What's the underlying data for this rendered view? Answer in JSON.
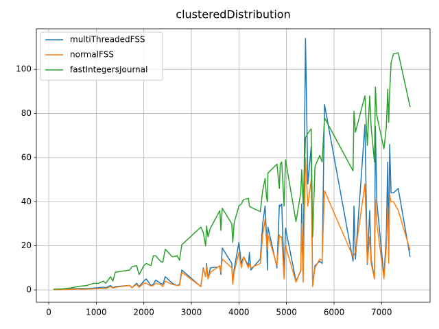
{
  "chart_data": {
    "type": "line",
    "title": "clusteredDistribution",
    "x": [
      100,
      300,
      500,
      600,
      800,
      950,
      1050,
      1150,
      1200,
      1300,
      1350,
      1400,
      1700,
      1750,
      1850,
      1900,
      2000,
      2050,
      2150,
      2200,
      2250,
      2350,
      2400,
      2450,
      2600,
      2700,
      2750,
      2800,
      3200,
      3250,
      3300,
      3320,
      3350,
      3400,
      3600,
      3620,
      3650,
      3850,
      3870,
      3900,
      4000,
      4050,
      4100,
      4200,
      4220,
      4250,
      4450,
      4500,
      4550,
      4580,
      4600,
      4610,
      4800,
      4850,
      4870,
      4900,
      4950,
      4980,
      5200,
      5300,
      5320,
      5350,
      5400,
      5450,
      5520,
      5550,
      5600,
      5700,
      5750,
      5800,
      6400,
      6420,
      6450,
      6650,
      6700,
      6750,
      6780,
      6850,
      6870,
      6900,
      7050,
      7100,
      7130,
      7150,
      7170,
      7200,
      7250,
      7350,
      7600
    ],
    "series": [
      {
        "name": "multiThreadedFSS",
        "color": "#1f77b4",
        "values": [
          0.2,
          0.3,
          0.5,
          0.6,
          0.6,
          0.8,
          1.0,
          1.2,
          1.0,
          2.0,
          1.0,
          1.5,
          2.0,
          1.0,
          3.0,
          1.5,
          4.0,
          5.0,
          2.0,
          2.5,
          4.5,
          3.0,
          2.5,
          6.0,
          3.0,
          2.0,
          2.5,
          9.0,
          1.5,
          10.0,
          6.0,
          12.0,
          5.0,
          10.0,
          10.5,
          7.0,
          19.0,
          12.0,
          3.0,
          9.5,
          21.5,
          12.0,
          15.0,
          11.0,
          17.0,
          9.0,
          14.0,
          30.0,
          38.0,
          25.0,
          9.0,
          28.5,
          10.0,
          38.5,
          38.0,
          39.0,
          7.0,
          28.0,
          4.0,
          8.5,
          39.0,
          4.0,
          114.0,
          48.0,
          65.0,
          2.0,
          11.0,
          13.0,
          12.0,
          84.0,
          13.0,
          38.0,
          14.0,
          75.0,
          11.5,
          36.0,
          14.0,
          5.0,
          74.0,
          40.0,
          6.0,
          25.0,
          58.0,
          13.0,
          66.0,
          44.0,
          44.0,
          46.0,
          15.0
        ]
      },
      {
        "name": "normalFSS",
        "color": "#ff7f0e",
        "values": [
          0.1,
          0.2,
          0.3,
          0.4,
          0.4,
          0.5,
          0.6,
          0.8,
          0.6,
          1.5,
          0.8,
          1.2,
          2.0,
          1.0,
          2.5,
          1.2,
          3.0,
          3.0,
          1.8,
          2.0,
          3.0,
          2.5,
          1.5,
          4.0,
          2.5,
          2.0,
          2.0,
          8.0,
          1.5,
          9.5,
          6.0,
          11.0,
          5.0,
          8.0,
          11.0,
          8.0,
          14.0,
          10.0,
          2.5,
          8.0,
          17.0,
          10.0,
          15.0,
          10.0,
          12.0,
          10.0,
          12.0,
          25.0,
          32.0,
          22.0,
          18.0,
          25.0,
          11.0,
          25.0,
          24.0,
          24.0,
          5.0,
          20.0,
          3.5,
          9.0,
          30.0,
          3.5,
          60.0,
          38.0,
          50.0,
          1.5,
          10.0,
          14.0,
          13.5,
          45.0,
          15.0,
          16.0,
          17.0,
          48.0,
          12.0,
          24.0,
          12.0,
          5.0,
          41.0,
          30.0,
          5.0,
          20.0,
          38.0,
          12.0,
          43.0,
          40.0,
          40.0,
          36.0,
          18.0
        ]
      },
      {
        "name": "fastIntegersJournal",
        "color": "#2ca02c",
        "values": [
          0.3,
          0.5,
          1.0,
          1.5,
          2.0,
          3.0,
          3.0,
          4.0,
          3.0,
          6.0,
          4.0,
          8.0,
          9.0,
          10.5,
          11.0,
          7.0,
          11.0,
          12.0,
          11.0,
          15.5,
          15.5,
          13.0,
          12.5,
          18.5,
          15.0,
          15.5,
          13.5,
          20.5,
          28.5,
          26.0,
          20.0,
          29.0,
          24.0,
          28.0,
          36.0,
          27.0,
          37.0,
          30.0,
          21.5,
          30.5,
          38.0,
          39.0,
          41.0,
          41.5,
          38.0,
          37.5,
          35.5,
          45.0,
          50.5,
          42.0,
          40.0,
          53.0,
          57.0,
          46.0,
          57.0,
          58.0,
          38.0,
          59.0,
          31.0,
          44.0,
          54.5,
          39.0,
          69.0,
          71.0,
          73.0,
          24.0,
          56.0,
          61.0,
          58.0,
          78.0,
          54.0,
          81.0,
          71.5,
          88.0,
          65.5,
          88.0,
          74.0,
          58.0,
          92.0,
          79.0,
          64.0,
          74.0,
          91.0,
          76.0,
          90.0,
          103.0,
          107.0,
          107.5,
          83.0
        ]
      }
    ],
    "xlim": [
      -260,
      8020
    ],
    "ylim": [
      -5.6,
      118.4
    ],
    "xticks": [
      0,
      1000,
      2000,
      3000,
      4000,
      5000,
      6000,
      7000
    ],
    "yticks": [
      0,
      20,
      40,
      60,
      80,
      100
    ],
    "grid": true,
    "legend": "upper-left"
  }
}
